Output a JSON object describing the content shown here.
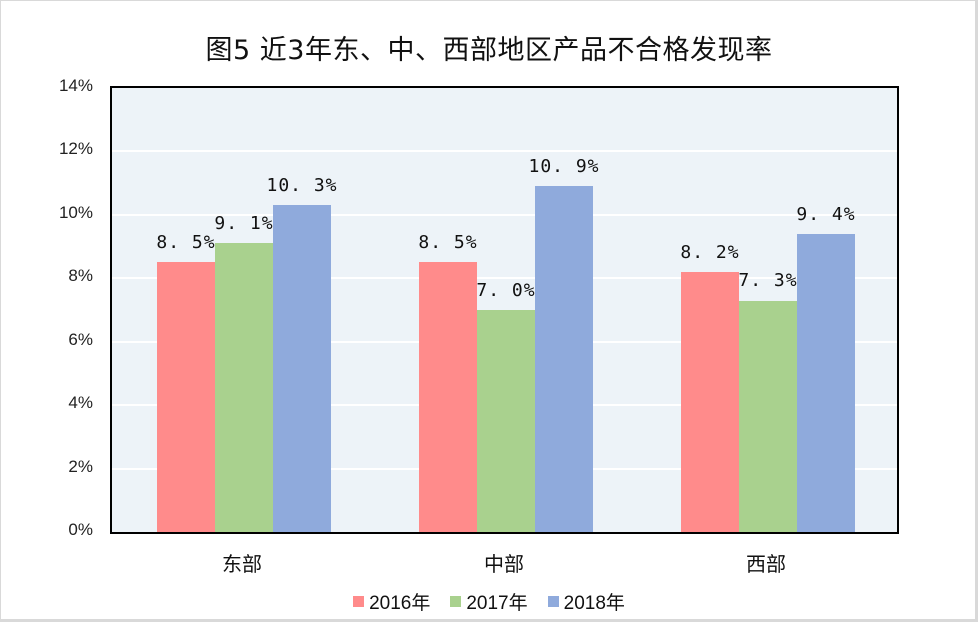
{
  "title": "图5 近3年东、中、西部地区产品不合格发现率",
  "colors": {
    "2016": "#ff8b8b",
    "2017": "#a9d18e",
    "2018": "#8faadc",
    "plot_bg": "#edf3f8"
  },
  "y_ticks": [
    "0%",
    "2%",
    "4%",
    "6%",
    "8%",
    "10%",
    "12%",
    "14%"
  ],
  "categories": [
    "东部",
    "中部",
    "西部"
  ],
  "legend": [
    "2016年",
    "2017年",
    "2018年"
  ],
  "labels": {
    "east": [
      "8.5%",
      "9.1%",
      "10.3%"
    ],
    "central": [
      "8.5%",
      "7.0%",
      "10.9%"
    ],
    "west": [
      "8.2%",
      "7.3%",
      "9.4%"
    ]
  },
  "chart_data": {
    "type": "bar",
    "title": "图5 近3年东、中、西部地区产品不合格发现率",
    "categories": [
      "东部",
      "中部",
      "西部"
    ],
    "series": [
      {
        "name": "2016年",
        "color": "#ff8b8b",
        "values": [
          8.5,
          8.5,
          8.2
        ]
      },
      {
        "name": "2017年",
        "color": "#a9d18e",
        "values": [
          9.1,
          7.0,
          7.3
        ]
      },
      {
        "name": "2018年",
        "color": "#8faadc",
        "values": [
          10.3,
          10.9,
          9.4
        ]
      }
    ],
    "xlabel": "",
    "ylabel": "",
    "ylim": [
      0,
      14
    ],
    "y_tick_step": 2,
    "y_format": "percent",
    "grid": true,
    "data_labels": true,
    "legend_position": "bottom"
  }
}
